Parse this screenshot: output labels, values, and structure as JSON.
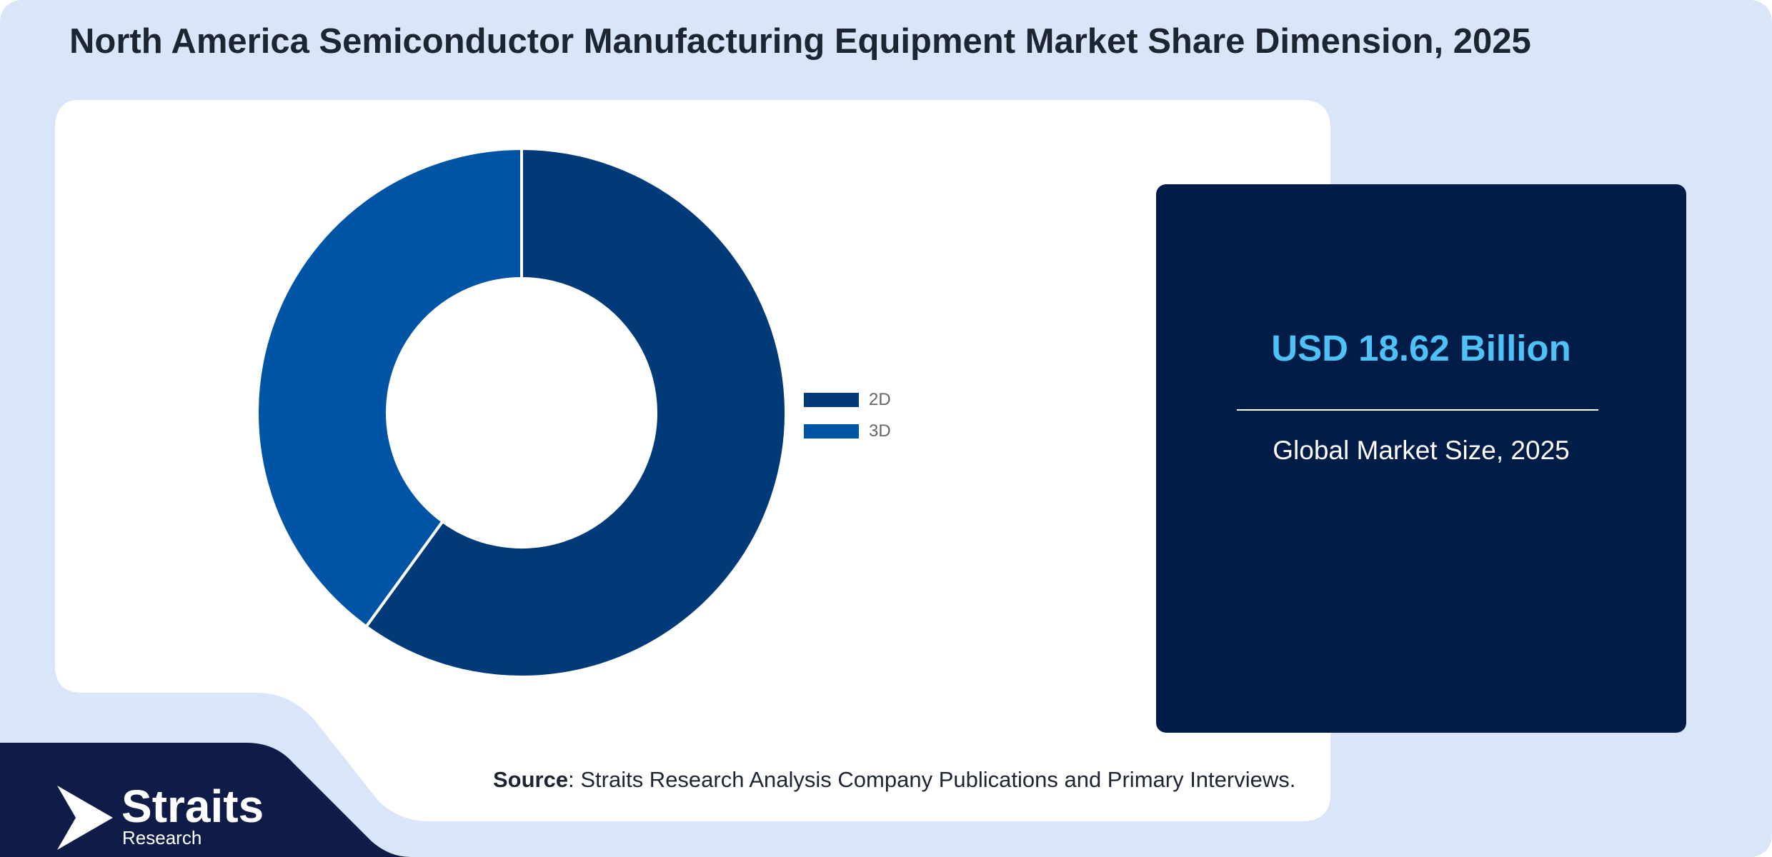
{
  "title": "North America Semiconductor Manufacturing Equipment Market Share Dimension, 2025",
  "chart_data": {
    "type": "pie",
    "categories": [
      "2D",
      "3D"
    ],
    "values": [
      60,
      40
    ],
    "colors": [
      "#003a78",
      "#0054a6"
    ],
    "legend_position": "right"
  },
  "highlight": {
    "value": "USD 18.62 Billion",
    "caption": "Global Market Size, 2025",
    "value_color": "#4ec2f7",
    "panel_color": "#001c47"
  },
  "source": {
    "label": "Source",
    "text": ": Straits Research Analysis Company Publications and Primary Interviews."
  },
  "logo": {
    "name": "Straits",
    "sub": "Research",
    "icon": "straits-arrow-icon"
  }
}
